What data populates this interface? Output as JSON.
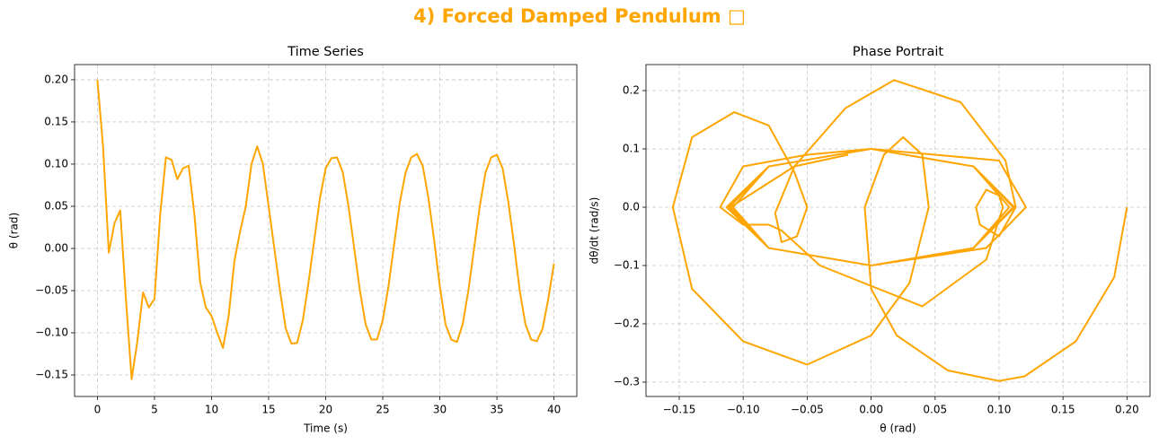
{
  "title": "4) Forced Damped Pendulum □",
  "chart_data": [
    {
      "type": "line",
      "title": "Time Series",
      "xlabel": "Time (s)",
      "ylabel": "θ (rad)",
      "color": "#ffa500",
      "grid": true,
      "x": [
        0,
        0.5,
        1,
        1.5,
        2,
        2.5,
        3,
        3.5,
        4,
        4.5,
        5,
        5.5,
        6,
        6.5,
        7,
        7.5,
        8,
        8.5,
        9,
        9.5,
        10,
        10.5,
        11,
        11.5,
        12,
        12.5,
        13,
        13.5,
        14,
        14.5,
        15,
        15.5,
        16,
        16.5,
        17,
        17.5,
        18,
        18.5,
        19,
        19.5,
        20,
        20.5,
        21,
        21.5,
        22,
        22.5,
        23,
        23.5,
        24,
        24.5,
        25,
        25.5,
        26,
        26.5,
        27,
        27.5,
        28,
        28.5,
        29,
        29.5,
        30,
        30.5,
        31,
        31.5,
        32,
        32.5,
        33,
        33.5,
        34,
        34.5,
        35,
        35.5,
        36,
        36.5,
        37,
        37.5,
        38,
        38.5,
        39,
        39.5,
        40
      ],
      "values": [
        0.2,
        0.12,
        -0.005,
        0.03,
        0.045,
        -0.06,
        -0.155,
        -0.11,
        -0.052,
        -0.07,
        -0.06,
        0.04,
        0.108,
        0.105,
        0.082,
        0.095,
        0.098,
        0.04,
        -0.04,
        -0.07,
        -0.08,
        -0.1,
        -0.118,
        -0.08,
        -0.015,
        0.02,
        0.05,
        0.1,
        0.121,
        0.1,
        0.05,
        0.0,
        -0.05,
        -0.095,
        -0.113,
        -0.112,
        -0.085,
        -0.04,
        0.01,
        0.06,
        0.095,
        0.107,
        0.108,
        0.09,
        0.05,
        0.0,
        -0.05,
        -0.09,
        -0.108,
        -0.108,
        -0.085,
        -0.045,
        0.005,
        0.055,
        0.09,
        0.108,
        0.112,
        0.098,
        0.06,
        0.01,
        -0.045,
        -0.09,
        -0.108,
        -0.111,
        -0.09,
        -0.05,
        0.0,
        0.05,
        0.09,
        0.108,
        0.111,
        0.095,
        0.055,
        0.005,
        -0.05,
        -0.09,
        -0.108,
        -0.11,
        -0.095,
        -0.06,
        -0.018
      ],
      "xlim": [
        -2,
        42
      ],
      "ylim": [
        -0.1755,
        0.218
      ],
      "xticks": [
        0,
        5,
        10,
        15,
        20,
        25,
        30,
        35,
        40
      ],
      "yticks": [
        {
          "value": -0.15,
          "label": "−0.15"
        },
        {
          "value": -0.1,
          "label": "−0.10"
        },
        {
          "value": -0.05,
          "label": "−0.05"
        },
        {
          "value": 0,
          "label": "0.00"
        },
        {
          "value": 0.05,
          "label": "0.05"
        },
        {
          "value": 0.1,
          "label": "0.10"
        },
        {
          "value": 0.15,
          "label": "0.15"
        },
        {
          "value": 0.2,
          "label": "0.20"
        }
      ]
    },
    {
      "type": "line",
      "title": "Phase Portrait",
      "xlabel": "θ (rad)",
      "ylabel": "dθ/dt (rad/s)",
      "color": "#ffa500",
      "grid": true,
      "x": [
        0.2,
        0.19,
        0.16,
        0.12,
        0.1,
        0.06,
        0.02,
        0.0,
        -0.005,
        0.01,
        0.025,
        0.04,
        0.045,
        0.03,
        0.0,
        -0.05,
        -0.1,
        -0.14,
        -0.155,
        -0.14,
        -0.107,
        -0.08,
        -0.06,
        -0.05,
        -0.058,
        -0.07,
        -0.075,
        -0.06,
        -0.02,
        0.018,
        0.07,
        0.105,
        0.113,
        0.1,
        0.085,
        0.082,
        0.09,
        0.1,
        0.103,
        0.09,
        0.04,
        -0.04,
        -0.07,
        -0.08,
        -0.1,
        -0.118,
        -0.1,
        -0.05,
        0.0,
        0.05,
        0.1,
        0.121,
        0.09,
        0.0,
        -0.08,
        -0.113,
        -0.08,
        0.0,
        0.08,
        0.108,
        0.08,
        0.0,
        -0.08,
        -0.108,
        -0.08,
        0.0,
        0.08,
        0.112,
        0.08,
        0.0,
        -0.08,
        -0.111,
        -0.08,
        0.0,
        0.08,
        0.111,
        0.08,
        0.0,
        -0.08,
        -0.11,
        -0.06,
        -0.018
      ],
      "values": [
        0,
        -0.12,
        -0.23,
        -0.29,
        -0.298,
        -0.28,
        -0.22,
        -0.14,
        0.0,
        0.09,
        0.12,
        0.09,
        0.0,
        -0.13,
        -0.22,
        -0.27,
        -0.23,
        -0.14,
        0.0,
        0.12,
        0.163,
        0.14,
        0.06,
        0.0,
        -0.05,
        -0.06,
        -0.01,
        0.07,
        0.17,
        0.218,
        0.18,
        0.08,
        0.0,
        -0.05,
        -0.03,
        0.0,
        0.03,
        0.02,
        0.0,
        -0.09,
        -0.17,
        -0.1,
        -0.04,
        -0.03,
        -0.03,
        0.0,
        0.07,
        0.09,
        0.1,
        0.09,
        0.08,
        0.0,
        -0.07,
        -0.1,
        -0.07,
        0.0,
        0.07,
        0.1,
        0.07,
        0.0,
        -0.07,
        -0.1,
        -0.07,
        0.0,
        0.07,
        0.1,
        0.07,
        0.0,
        -0.07,
        -0.1,
        -0.07,
        0.0,
        0.07,
        0.1,
        0.07,
        0.0,
        -0.07,
        -0.1,
        -0.07,
        0.0,
        0.07,
        0.09
      ],
      "xlim": [
        -0.176,
        0.218
      ],
      "ylim": [
        -0.3246,
        0.2446
      ],
      "xticks": [
        {
          "value": -0.15,
          "label": "−0.15"
        },
        {
          "value": -0.1,
          "label": "−0.10"
        },
        {
          "value": -0.05,
          "label": "−0.05"
        },
        {
          "value": 0,
          "label": "0.00"
        },
        {
          "value": 0.05,
          "label": "0.05"
        },
        {
          "value": 0.1,
          "label": "0.10"
        },
        {
          "value": 0.15,
          "label": "0.15"
        },
        {
          "value": 0.2,
          "label": "0.20"
        }
      ],
      "yticks": [
        {
          "value": -0.3,
          "label": "−0.3"
        },
        {
          "value": -0.2,
          "label": "−0.2"
        },
        {
          "value": -0.1,
          "label": "−0.1"
        },
        {
          "value": 0,
          "label": "0.0"
        },
        0.1,
        0.2
      ]
    }
  ]
}
